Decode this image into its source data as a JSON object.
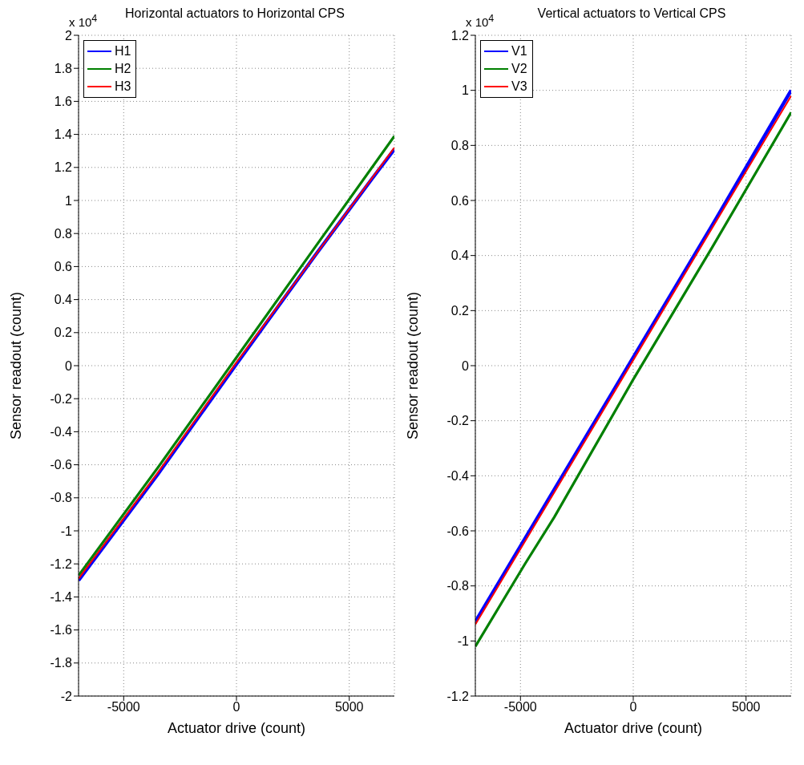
{
  "chart_data": [
    {
      "type": "line",
      "title": "Horizontal actuators to Horizontal CPS",
      "xlabel": "Actuator drive (count)",
      "ylabel": "Sensor readout (count)",
      "annotations": [
        "x 10$^{4}$"
      ],
      "series": [
        {
          "name": "H1",
          "color": "#0000ff",
          "x": [
            -7000,
            -3500,
            0,
            3500,
            6000,
            7000
          ],
          "values": [
            -1.3,
            -0.66,
            0.01,
            0.67,
            1.13,
            1.31
          ]
        },
        {
          "name": "H2",
          "color": "#008000",
          "x": [
            -7000,
            -3500,
            0,
            3500,
            7000
          ],
          "values": [
            -1.27,
            -0.62,
            0.05,
            0.72,
            1.39
          ]
        },
        {
          "name": "H3",
          "color": "#ff0000",
          "x": [
            -7000,
            -3500,
            0,
            3500,
            7000
          ],
          "values": [
            -1.29,
            -0.65,
            0.02,
            0.67,
            1.32
          ]
        }
      ],
      "xlim": [
        -7000,
        7000
      ],
      "xticks": [
        -5000,
        0,
        5000
      ],
      "ylim": [
        -2,
        2
      ],
      "yticks": [
        -2,
        -1.8,
        -1.6,
        -1.4,
        -1.2,
        -1,
        -0.8,
        -0.6,
        -0.4,
        -0.2,
        0,
        0.2,
        0.4,
        0.6,
        0.8,
        1,
        1.2,
        1.4,
        1.6,
        1.8,
        2
      ],
      "grid": true,
      "legend": "top left",
      "line_style": "solid"
    },
    {
      "type": "line",
      "title": "Vertical actuators to Vertical CPS",
      "xlabel": "Actuator drive (count)",
      "ylabel": "Sensor readout (count)",
      "annotations": [
        "x 10$^{4}$"
      ],
      "series": [
        {
          "name": "V1",
          "color": "#0000ff",
          "x": [
            -7000,
            -3500,
            0,
            3500,
            7000
          ],
          "values": [
            -0.93,
            -0.45,
            0.03,
            0.51,
            1.0
          ]
        },
        {
          "name": "V2",
          "color": "#008000",
          "x": [
            -7000,
            -4800,
            -3500,
            0,
            3500,
            7000
          ],
          "values": [
            -1.02,
            -0.72,
            -0.55,
            -0.05,
            0.43,
            0.92
          ]
        },
        {
          "name": "V3",
          "color": "#ff0000",
          "x": [
            -7000,
            -3500,
            0,
            3500,
            7000
          ],
          "values": [
            -0.94,
            -0.46,
            0.02,
            0.5,
            0.98
          ]
        }
      ],
      "xlim": [
        -7000,
        7000
      ],
      "xticks": [
        -5000,
        0,
        5000
      ],
      "ylim": [
        -1.2,
        1.2
      ],
      "yticks": [
        -1.2,
        -1,
        -0.8,
        -0.6,
        -0.4,
        -0.2,
        0,
        0.2,
        0.4,
        0.6,
        0.8,
        1,
        1.2
      ],
      "grid": true,
      "legend": "top left",
      "line_style": "solid"
    }
  ]
}
